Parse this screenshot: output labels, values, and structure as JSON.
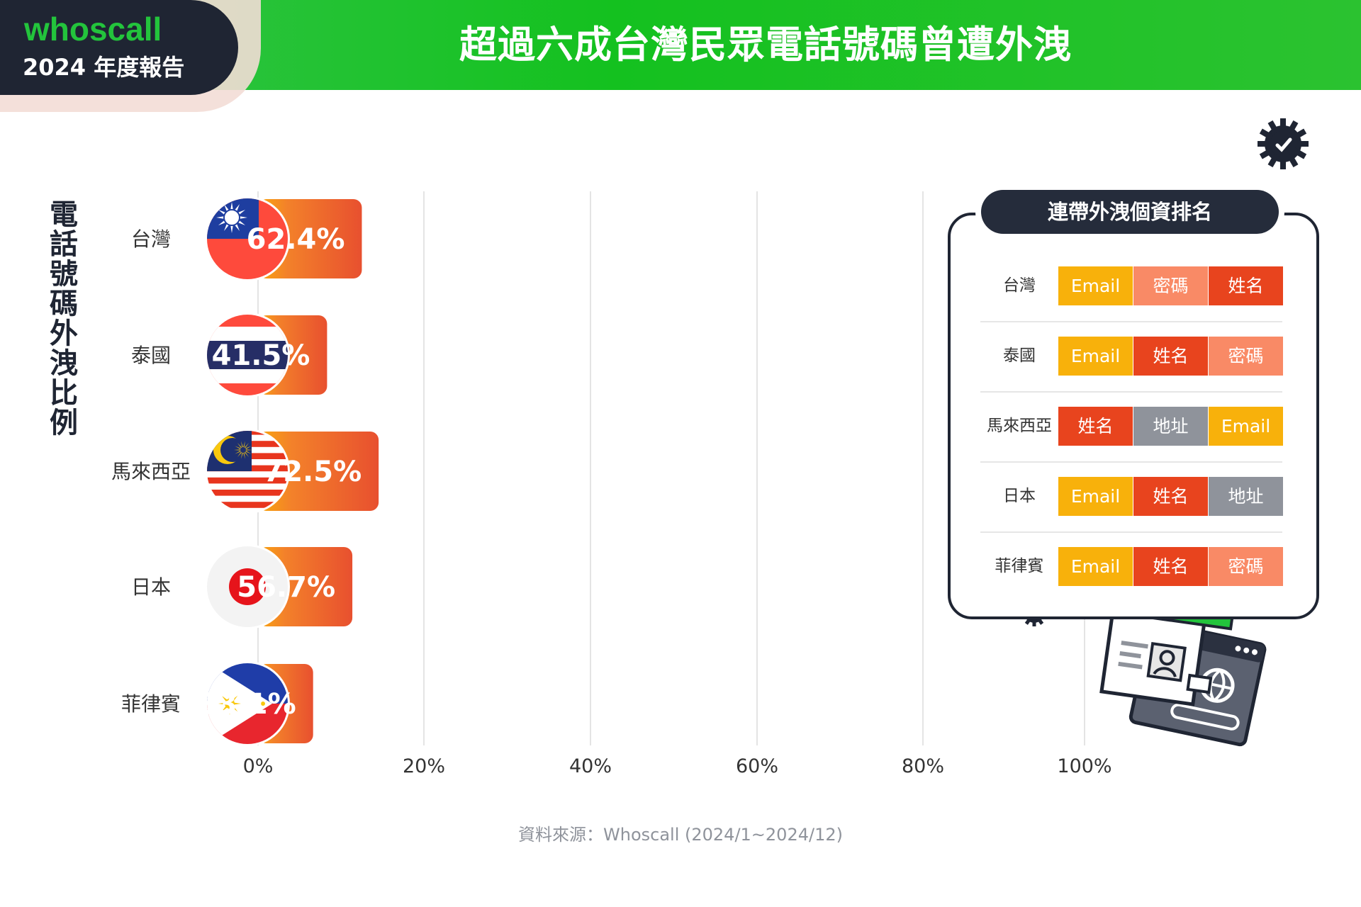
{
  "header": {
    "title": "超過六成台灣民眾電話號碼曾遭外洩"
  },
  "brand": {
    "name": "whoscall",
    "subtitle": "2024 年度報告"
  },
  "chart_data": {
    "type": "bar",
    "orientation": "horizontal",
    "ylabel": "電話號碼外洩比例",
    "categories": [
      "台灣",
      "泰國",
      "馬來西亞",
      "日本",
      "菲律賓"
    ],
    "values": [
      62.4,
      41.5,
      72.5,
      56.7,
      33.1
    ],
    "value_labels": [
      "62.4%",
      "41.5%",
      "72.5%",
      "56.7%",
      "33.1%"
    ],
    "x_ticks": [
      "0%",
      "20%",
      "40%",
      "60%",
      "80%",
      "100%"
    ],
    "xlim": [
      0,
      100
    ],
    "grid": true,
    "colors": {
      "bar_start": "#f9a70e",
      "bar_end": "#e8502f",
      "grid": "#e4e4e4"
    }
  },
  "panel": {
    "title": "連帶外洩個資排名",
    "rows": [
      {
        "country": "台灣",
        "tags": [
          {
            "label": "Email",
            "kind": "email"
          },
          {
            "label": "密碼",
            "kind": "pwd"
          },
          {
            "label": "姓名",
            "kind": "name"
          }
        ]
      },
      {
        "country": "泰國",
        "tags": [
          {
            "label": "Email",
            "kind": "email"
          },
          {
            "label": "姓名",
            "kind": "name"
          },
          {
            "label": "密碼",
            "kind": "pwd"
          }
        ]
      },
      {
        "country": "馬來西亞",
        "tags": [
          {
            "label": "姓名",
            "kind": "name"
          },
          {
            "label": "地址",
            "kind": "addr"
          },
          {
            "label": "Email",
            "kind": "email"
          }
        ]
      },
      {
        "country": "日本",
        "tags": [
          {
            "label": "Email",
            "kind": "email"
          },
          {
            "label": "姓名",
            "kind": "name"
          },
          {
            "label": "地址",
            "kind": "addr"
          }
        ]
      },
      {
        "country": "菲律賓",
        "tags": [
          {
            "label": "Email",
            "kind": "email"
          },
          {
            "label": "姓名",
            "kind": "name"
          },
          {
            "label": "密碼",
            "kind": "pwd"
          }
        ]
      }
    ],
    "tag_colors": {
      "email": "#f8b10b",
      "pwd": "#f98a66",
      "name": "#e8441e",
      "addr": "#8f939b"
    }
  },
  "source": "資料來源：Whoscall (2024/1~2024/12)",
  "icons": [
    "virus-icon",
    "id-card-icon",
    "browser-window-icon",
    "flag-taiwan-icon",
    "flag-thailand-icon",
    "flag-malaysia-icon",
    "flag-japan-icon",
    "flag-philippines-icon"
  ]
}
